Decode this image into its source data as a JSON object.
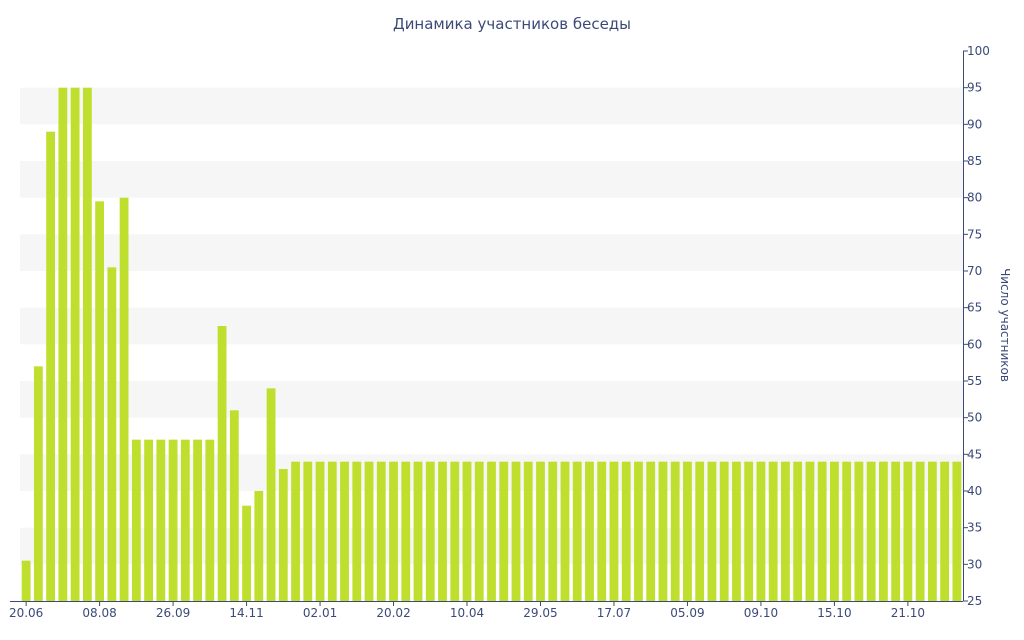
{
  "chart_data": {
    "type": "bar",
    "title": "Динамика участников беседы",
    "xlabel": "",
    "ylabel": "Число участников",
    "ylim": [
      25,
      100
    ],
    "yticks": [
      25,
      30,
      35,
      40,
      45,
      50,
      55,
      60,
      65,
      70,
      75,
      80,
      85,
      90,
      95,
      100
    ],
    "grid": "alternating horizontal bands",
    "y_axis_position": "right",
    "bar_color": "#bfdf2f",
    "xtick_labels": [
      {
        "index": 0,
        "label": "20.06"
      },
      {
        "index": 6,
        "label": "08.08"
      },
      {
        "index": 12,
        "label": "26.09"
      },
      {
        "index": 18,
        "label": "14.11"
      },
      {
        "index": 24,
        "label": "02.01"
      },
      {
        "index": 30,
        "label": "20.02"
      },
      {
        "index": 36,
        "label": "10.04"
      },
      {
        "index": 42,
        "label": "29.05"
      },
      {
        "index": 48,
        "label": "17.07"
      },
      {
        "index": 54,
        "label": "05.09"
      },
      {
        "index": 60,
        "label": "09.10"
      },
      {
        "index": 66,
        "label": "15.10"
      },
      {
        "index": 72,
        "label": "21.10"
      }
    ],
    "values": [
      30.5,
      57,
      89,
      95,
      95,
      95,
      79.5,
      70.5,
      80,
      47,
      47,
      47,
      47,
      47,
      47,
      47,
      62.5,
      51,
      38,
      40,
      54,
      43,
      44,
      44,
      44,
      44,
      44,
      44,
      44,
      44,
      44,
      44,
      44,
      44,
      44,
      44,
      44,
      44,
      44,
      44,
      44,
      44,
      44,
      44,
      44,
      44,
      44,
      44,
      44,
      44,
      44,
      44,
      44,
      44,
      44,
      44,
      44,
      44,
      44,
      44,
      44,
      44,
      44,
      44,
      44,
      44,
      44,
      44,
      44,
      44,
      44,
      44,
      44,
      44,
      44,
      44,
      44
    ]
  }
}
